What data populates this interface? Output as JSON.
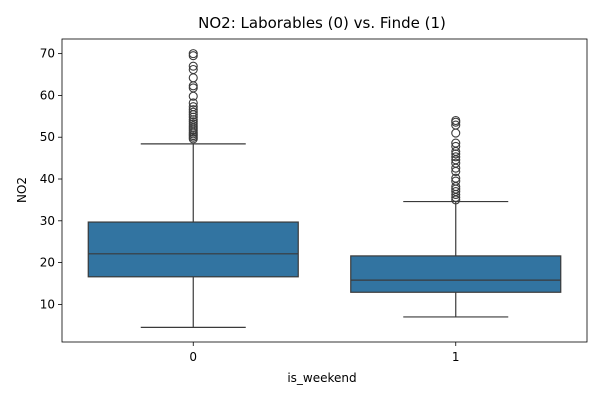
{
  "chart_data": {
    "type": "box",
    "title": "NO2: Laborables (0) vs. Finde (1)",
    "xlabel": "is_weekend",
    "ylabel": "NO2",
    "categories": [
      "0",
      "1"
    ],
    "yticks": [
      10,
      20,
      30,
      40,
      50,
      60,
      70
    ],
    "ylim": [
      1,
      73.5
    ],
    "box_color": "#3274a1",
    "line_color": "#3a3a3a",
    "boxes": [
      {
        "category": "0",
        "whisker_low": 4.5,
        "q1": 16.6,
        "median": 22.1,
        "q3": 29.7,
        "whisker_high": 48.4,
        "outliers": [
          49.6,
          50.0,
          50.4,
          50.8,
          51.2,
          51.7,
          52.2,
          52.7,
          53.2,
          53.7,
          54.2,
          54.8,
          55.4,
          56.0,
          56.6,
          57.3,
          58.2,
          59.8,
          61.8,
          62.3,
          64.2,
          66.2,
          67.0,
          69.5,
          70.0
        ]
      },
      {
        "category": "1",
        "whisker_low": 7.0,
        "q1": 12.9,
        "median": 15.8,
        "q3": 21.6,
        "whisker_high": 34.6,
        "outliers": [
          35.0,
          35.6,
          36.3,
          37.0,
          37.6,
          38.2,
          39.5,
          40.2,
          41.8,
          42.6,
          43.8,
          44.6,
          45.3,
          46.0,
          46.6,
          47.8,
          48.6,
          51.0,
          52.9,
          53.6,
          54.0
        ]
      }
    ]
  }
}
